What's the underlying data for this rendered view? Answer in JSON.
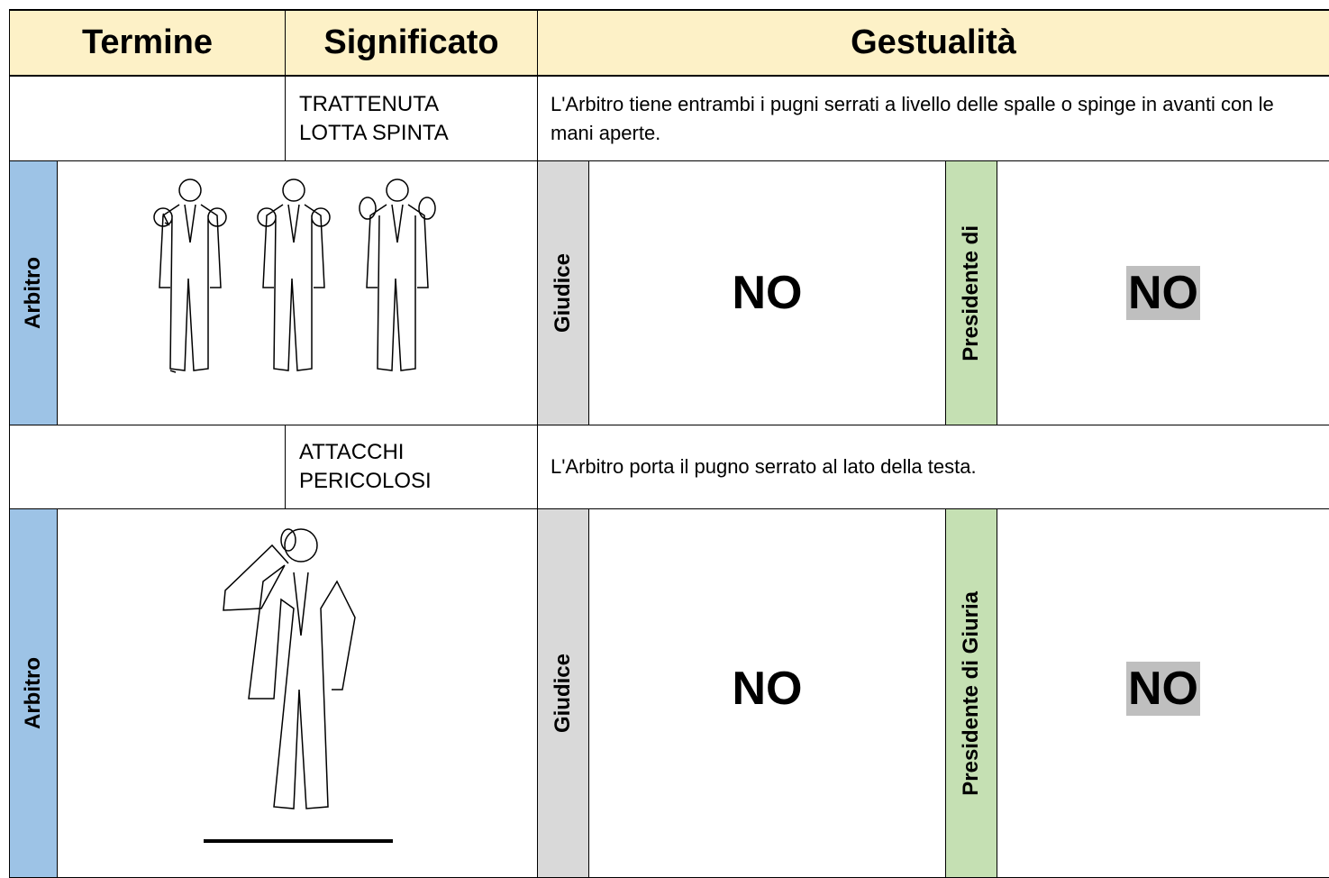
{
  "header": {
    "termine": "Termine",
    "significato": "Significato",
    "gestualita": "Gestualità"
  },
  "entries": [
    {
      "significato": [
        "TRATTENUTA",
        "LOTTA SPINTA"
      ],
      "description": "L'Arbitro tiene entrambi i pugni serrati a livello delle spalle o spinge in avanti con le mani aperte.",
      "arbitro_label": "Arbitro",
      "giudice_label": "Giudice",
      "giudice_value": "NO",
      "presidente_label": "Presidente di",
      "presidente_value": "NO"
    },
    {
      "significato": [
        "ATTACCHI",
        "PERICOLOSI"
      ],
      "description": "L'Arbitro porta il pugno serrato al lato della testa.",
      "arbitro_label": "Arbitro",
      "giudice_label": "Giudice",
      "giudice_value": "NO",
      "presidente_label": "Presidente di Giuria",
      "presidente_value": "NO"
    }
  ]
}
